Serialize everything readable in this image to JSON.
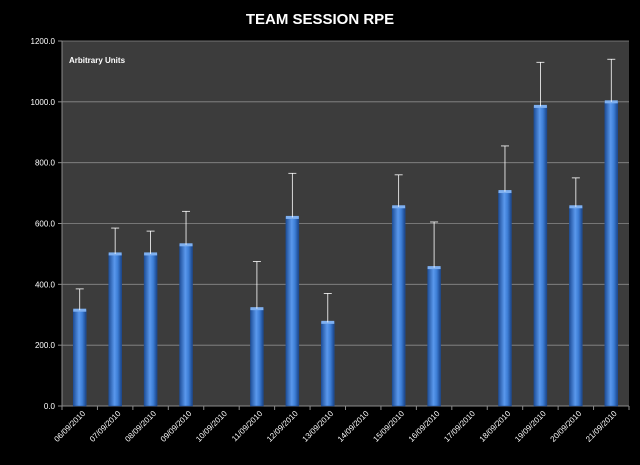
{
  "chart_data": {
    "type": "bar",
    "title": "TEAM SESSION RPE",
    "units_label": "Arbitrary Units",
    "categories": [
      "06/09/2010",
      "07/09/2010",
      "08/09/2010",
      "09/09/2010",
      "10/09/2010",
      "11/09/2010",
      "12/09/2010",
      "13/09/2010",
      "14/09/2010",
      "15/09/2010",
      "16/09/2010",
      "17/09/2010",
      "18/09/2010",
      "19/09/2010",
      "20/09/2010",
      "21/09/2010"
    ],
    "values": [
      315,
      500,
      500,
      530,
      null,
      320,
      620,
      275,
      null,
      655,
      455,
      null,
      705,
      985,
      655,
      1000
    ],
    "error_upper": [
      70,
      85,
      75,
      110,
      null,
      155,
      145,
      95,
      null,
      105,
      150,
      null,
      150,
      145,
      95,
      140
    ],
    "ylim": [
      0,
      1200
    ],
    "yticks": [
      "0.0",
      "200.0",
      "400.0",
      "600.0",
      "800.0",
      "1000.0",
      "1200.0"
    ],
    "ytick_values": [
      0,
      200,
      400,
      600,
      800,
      1000,
      1200
    ],
    "grid": true,
    "colors": {
      "background": "#000000",
      "plot_background": "#3c3c3c",
      "grid": "#8a8a8a",
      "bar": "#3d7ed6",
      "bar_highlight": "#7fb0f0",
      "bar_shadow": "#1f4f99",
      "error_bar": "#ffffff",
      "text": "#ffffff"
    }
  }
}
